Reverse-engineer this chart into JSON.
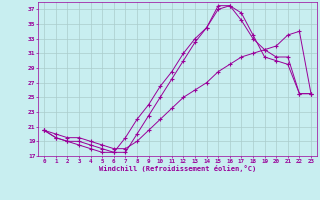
{
  "xlabel": "Windchill (Refroidissement éolien,°C)",
  "bg_color": "#c8eef0",
  "grid_color": "#aacccc",
  "line_color": "#990099",
  "xlim": [
    -0.5,
    23.5
  ],
  "ylim": [
    17,
    38
  ],
  "xticks": [
    0,
    1,
    2,
    3,
    4,
    5,
    6,
    7,
    8,
    9,
    10,
    11,
    12,
    13,
    14,
    15,
    16,
    17,
    18,
    19,
    20,
    21,
    22,
    23
  ],
  "yticks": [
    17,
    19,
    21,
    23,
    25,
    27,
    29,
    31,
    33,
    35,
    37
  ],
  "curve1_x": [
    0,
    1,
    2,
    3,
    4,
    5,
    6,
    7,
    8,
    9,
    10,
    11,
    12,
    13,
    14,
    15,
    16,
    17,
    18,
    19,
    20,
    21,
    22,
    23
  ],
  "curve1_y": [
    20.5,
    19.5,
    19.0,
    19.0,
    18.5,
    18.0,
    17.5,
    19.5,
    22.0,
    24.0,
    26.5,
    28.5,
    31.0,
    33.0,
    34.5,
    37.0,
    37.5,
    36.5,
    33.5,
    30.5,
    30.0,
    29.5,
    25.5,
    25.5
  ],
  "curve2_x": [
    0,
    1,
    2,
    3,
    4,
    5,
    6,
    7,
    8,
    9,
    10,
    11,
    12,
    13,
    14,
    15,
    16,
    17,
    18,
    19,
    20,
    21,
    22,
    23
  ],
  "curve2_y": [
    20.5,
    19.5,
    19.0,
    18.5,
    18.0,
    17.5,
    17.5,
    17.5,
    20.0,
    22.5,
    25.0,
    27.5,
    30.0,
    32.5,
    34.5,
    37.5,
    37.5,
    35.5,
    33.0,
    31.5,
    30.5,
    30.5,
    25.5,
    25.5
  ],
  "curve3_x": [
    0,
    1,
    2,
    3,
    4,
    5,
    6,
    7,
    8,
    9,
    10,
    11,
    12,
    13,
    14,
    15,
    16,
    17,
    18,
    19,
    20,
    21,
    22,
    23
  ],
  "curve3_y": [
    20.5,
    20.0,
    19.5,
    19.5,
    19.0,
    18.5,
    18.0,
    18.0,
    19.0,
    20.5,
    22.0,
    23.5,
    25.0,
    26.0,
    27.0,
    28.5,
    29.5,
    30.5,
    31.0,
    31.5,
    32.0,
    33.5,
    34.0,
    25.5
  ]
}
